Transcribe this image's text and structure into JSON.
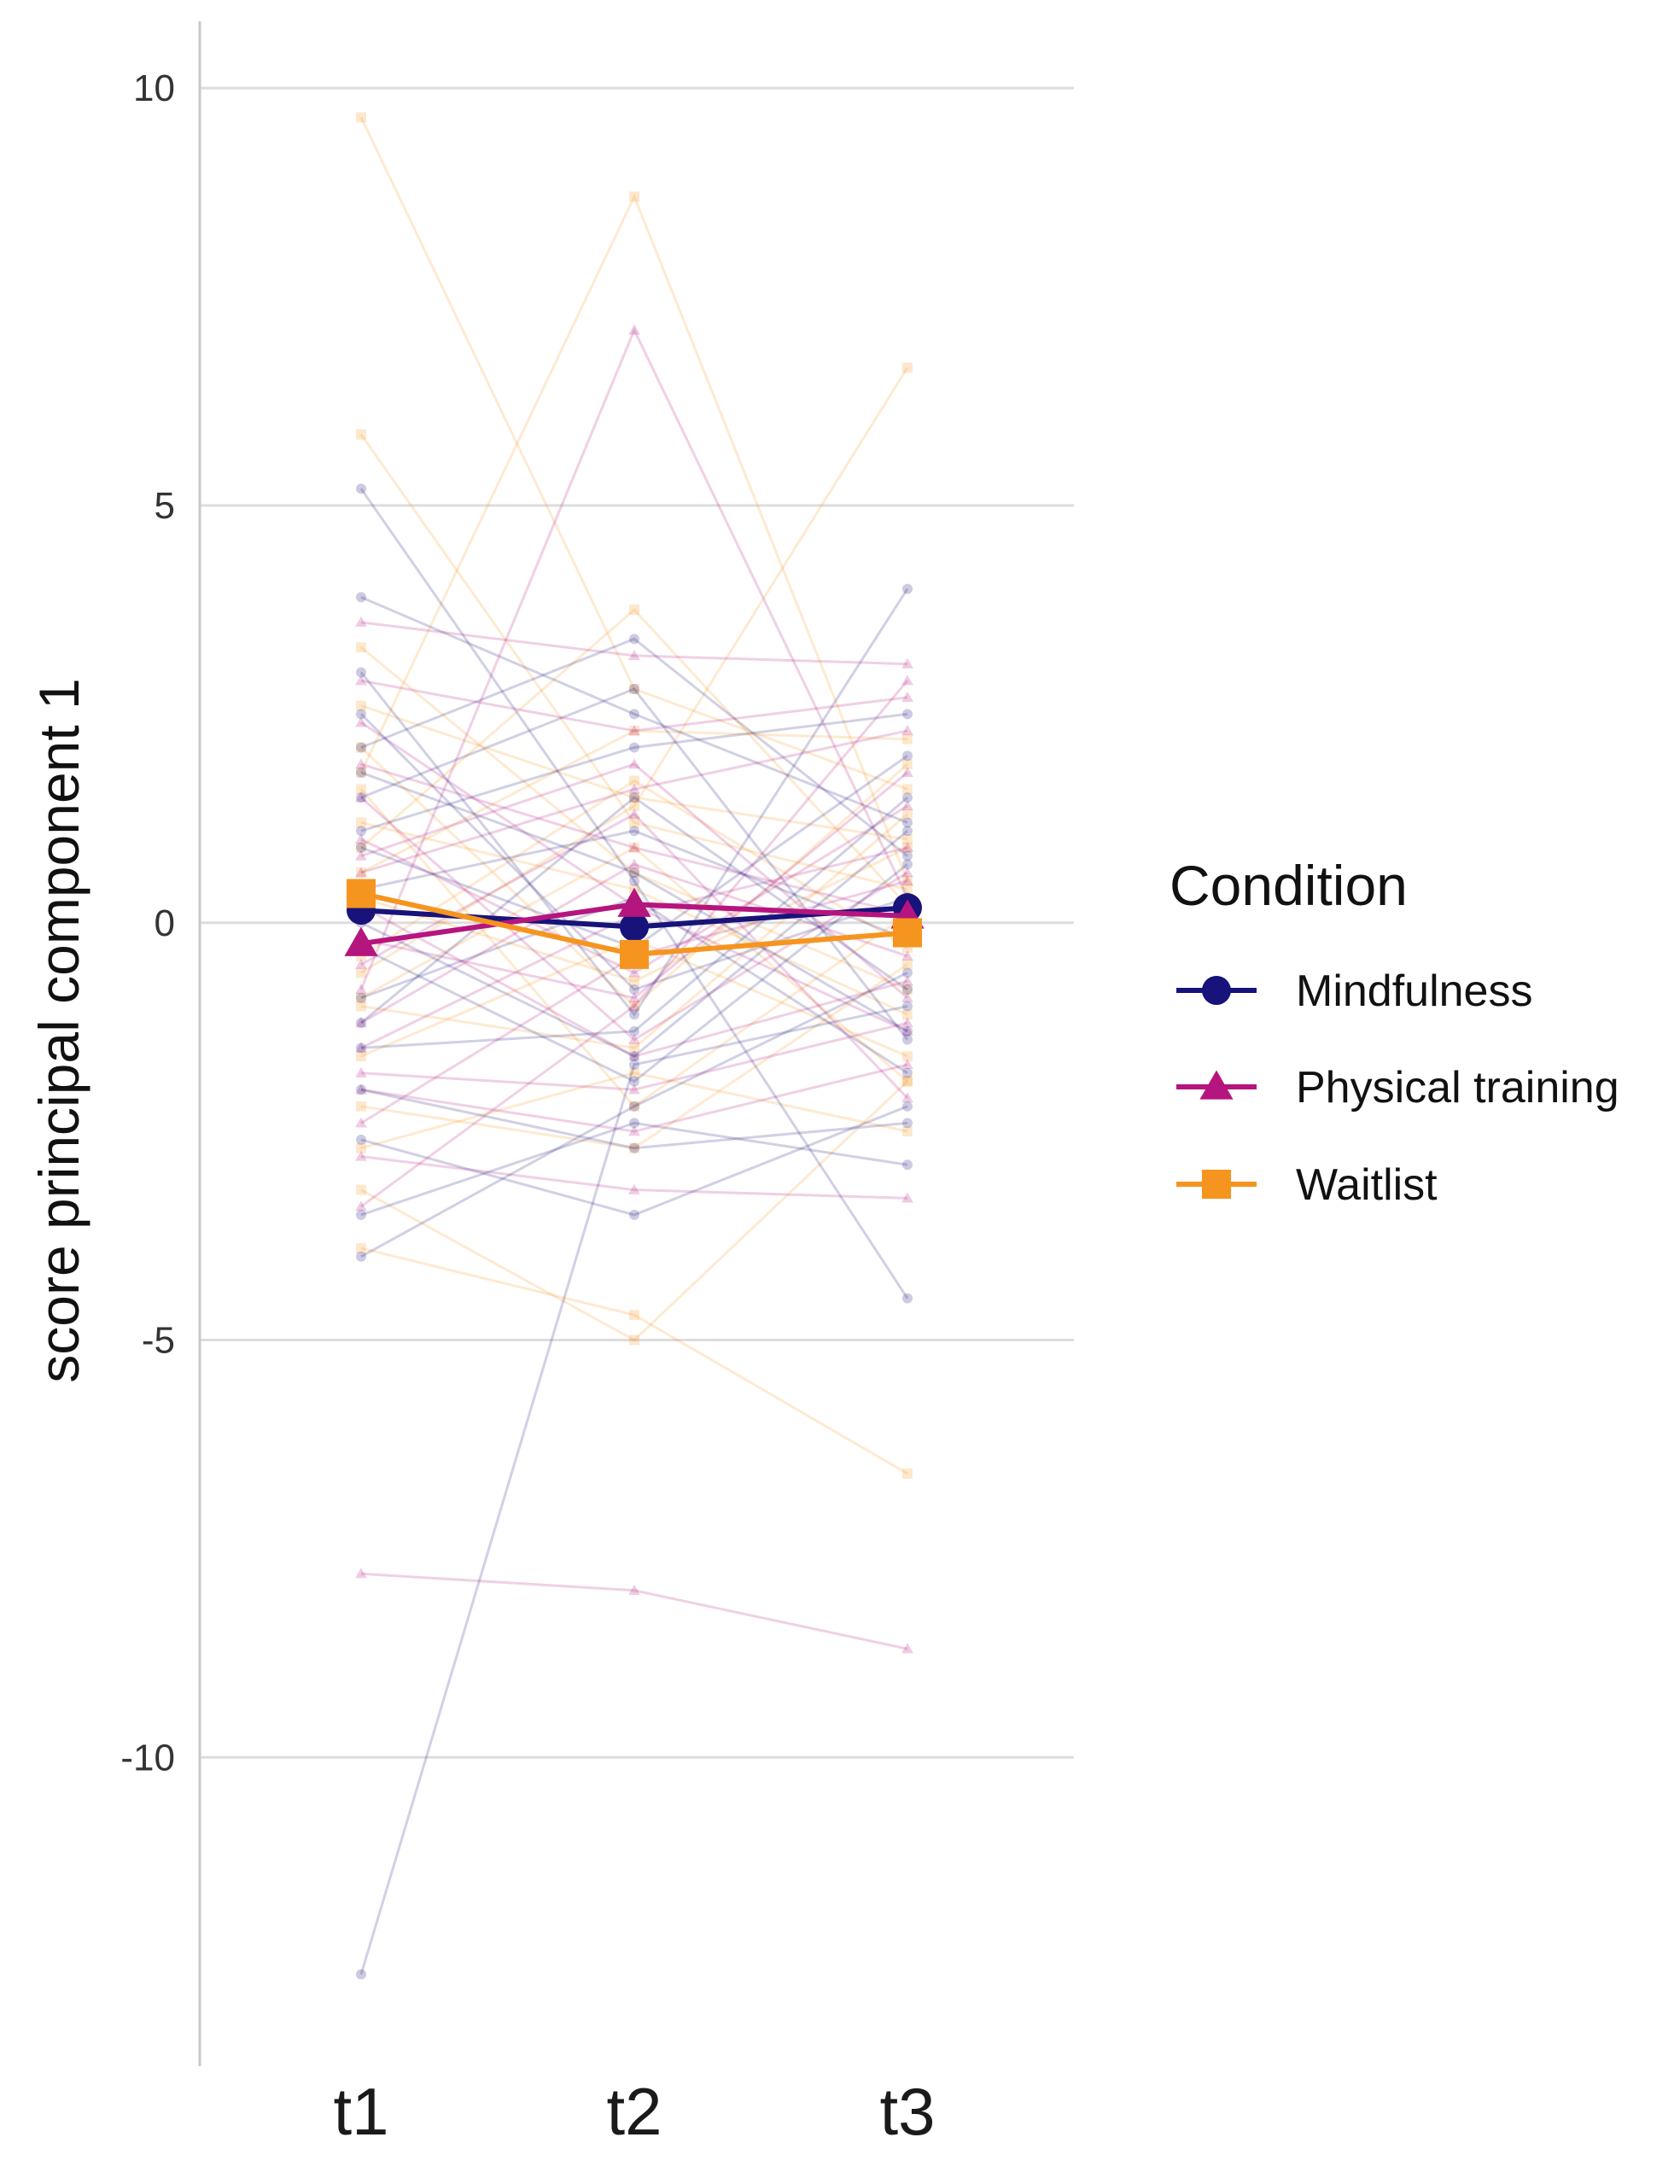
{
  "chart_data": {
    "type": "line",
    "title": "",
    "xlabel": "",
    "ylabel": "score principal component 1",
    "categories": [
      "t1",
      "t2",
      "t3"
    ],
    "ylim": [
      -13.7,
      10.8
    ],
    "yticks": [
      10,
      5,
      0,
      -5,
      -10
    ],
    "ytick_labels": [
      "10",
      "5",
      "0",
      "-5",
      "-10"
    ],
    "grid": "horizontal",
    "legend": {
      "title": "Condition",
      "placement": "right",
      "entries": [
        "Mindfulness",
        "Physical training",
        "Waitlist"
      ]
    },
    "series": [
      {
        "name": "Mindfulness",
        "marker": "circle",
        "color": "#17137a",
        "values": [
          0.15,
          -0.05,
          0.18
        ]
      },
      {
        "name": "Physical training",
        "marker": "triangle",
        "color": "#b5157f",
        "values": [
          -0.25,
          0.22,
          0.08
        ]
      },
      {
        "name": "Waitlist",
        "marker": "square",
        "color": "#f5951f",
        "values": [
          0.35,
          -0.38,
          -0.12
        ]
      }
    ],
    "individual_trajectories": [
      {
        "group": "Waitlist",
        "values": [
          9.65,
          2.8,
          1.6
        ]
      },
      {
        "group": "Waitlist",
        "values": [
          5.85,
          1.2,
          0.4
        ]
      },
      {
        "group": "Waitlist",
        "values": [
          1.8,
          8.7,
          0.5
        ]
      },
      {
        "group": "Waitlist",
        "values": [
          0.9,
          3.75,
          0.2
        ]
      },
      {
        "group": "Waitlist",
        "values": [
          -0.6,
          1.4,
          6.65
        ]
      },
      {
        "group": "Waitlist",
        "values": [
          -3.9,
          -4.7,
          -6.6
        ]
      },
      {
        "group": "Waitlist",
        "values": [
          -3.2,
          -5.0,
          -1.9
        ]
      },
      {
        "group": "Waitlist",
        "values": [
          3.3,
          0.6,
          -0.8
        ]
      },
      {
        "group": "Waitlist",
        "values": [
          2.1,
          -1.0,
          1.9
        ]
      },
      {
        "group": "Waitlist",
        "values": [
          1.2,
          0.4,
          -1.1
        ]
      },
      {
        "group": "Waitlist",
        "values": [
          0.3,
          -0.7,
          0.9
        ]
      },
      {
        "group": "Waitlist",
        "values": [
          -0.4,
          1.7,
          -0.3
        ]
      },
      {
        "group": "Waitlist",
        "values": [
          -1.0,
          -1.5,
          1.3
        ]
      },
      {
        "group": "Waitlist",
        "values": [
          -1.6,
          -0.2,
          -1.6
        ]
      },
      {
        "group": "Waitlist",
        "values": [
          -2.2,
          -2.7,
          -0.5
        ]
      },
      {
        "group": "Waitlist",
        "values": [
          -2.7,
          -1.8,
          -2.5
        ]
      },
      {
        "group": "Waitlist",
        "values": [
          0.6,
          2.3,
          2.2
        ]
      },
      {
        "group": "Waitlist",
        "values": [
          1.6,
          -2.2,
          0.1
        ]
      },
      {
        "group": "Waitlist",
        "values": [
          -0.9,
          0.9,
          -1.9
        ]
      },
      {
        "group": "Waitlist",
        "values": [
          2.6,
          1.5,
          1.0
        ]
      },
      {
        "group": "Physical training",
        "values": [
          -0.8,
          7.1,
          0.3
        ]
      },
      {
        "group": "Physical training",
        "values": [
          -7.8,
          -8.0,
          -8.7
        ]
      },
      {
        "group": "Physical training",
        "values": [
          -2.8,
          -3.2,
          -3.3
        ]
      },
      {
        "group": "Physical training",
        "values": [
          3.6,
          3.2,
          3.1
        ]
      },
      {
        "group": "Physical training",
        "values": [
          -3.4,
          -1.0,
          2.9
        ]
      },
      {
        "group": "Physical training",
        "values": [
          2.4,
          0.2,
          -1.3
        ]
      },
      {
        "group": "Physical training",
        "values": [
          1.5,
          -1.4,
          0.6
        ]
      },
      {
        "group": "Physical training",
        "values": [
          0.8,
          1.9,
          -0.9
        ]
      },
      {
        "group": "Physical training",
        "values": [
          -0.2,
          -0.9,
          1.8
        ]
      },
      {
        "group": "Physical training",
        "values": [
          -1.2,
          0.7,
          -0.4
        ]
      },
      {
        "group": "Physical training",
        "values": [
          -1.8,
          -2.0,
          -1.2
        ]
      },
      {
        "group": "Physical training",
        "values": [
          -2.4,
          -0.4,
          0.5
        ]
      },
      {
        "group": "Physical training",
        "values": [
          2.9,
          2.3,
          2.7
        ]
      },
      {
        "group": "Physical training",
        "values": [
          1.0,
          -0.6,
          1.4
        ]
      },
      {
        "group": "Physical training",
        "values": [
          -0.5,
          1.3,
          -2.1
        ]
      },
      {
        "group": "Physical training",
        "values": [
          0.2,
          -1.6,
          -0.7
        ]
      },
      {
        "group": "Physical training",
        "values": [
          -1.5,
          0.1,
          0.9
        ]
      },
      {
        "group": "Physical training",
        "values": [
          1.9,
          0.9,
          0.1
        ]
      },
      {
        "group": "Physical training",
        "values": [
          -2.0,
          -2.5,
          -1.7
        ]
      },
      {
        "group": "Physical training",
        "values": [
          0.6,
          1.6,
          2.3
        ]
      },
      {
        "group": "Mindfulness",
        "values": [
          5.2,
          0.5,
          -4.5
        ]
      },
      {
        "group": "Mindfulness",
        "values": [
          -12.6,
          -1.7,
          -1.0
        ]
      },
      {
        "group": "Mindfulness",
        "values": [
          -4.0,
          -2.2,
          -0.6
        ]
      },
      {
        "group": "Mindfulness",
        "values": [
          -3.5,
          -2.4,
          -2.9
        ]
      },
      {
        "group": "Mindfulness",
        "values": [
          -2.6,
          -3.5,
          -2.2
        ]
      },
      {
        "group": "Mindfulness",
        "values": [
          3.9,
          2.5,
          1.2
        ]
      },
      {
        "group": "Mindfulness",
        "values": [
          3.0,
          -1.1,
          4.0
        ]
      },
      {
        "group": "Mindfulness",
        "values": [
          2.1,
          3.4,
          0.8
        ]
      },
      {
        "group": "Mindfulness",
        "values": [
          1.5,
          2.8,
          -1.4
        ]
      },
      {
        "group": "Mindfulness",
        "values": [
          0.9,
          -0.3,
          2.0
        ]
      },
      {
        "group": "Mindfulness",
        "values": [
          0.4,
          1.1,
          -0.2
        ]
      },
      {
        "group": "Mindfulness",
        "values": [
          -0.3,
          -1.9,
          0.7
        ]
      },
      {
        "group": "Mindfulness",
        "values": [
          -0.9,
          0.3,
          -1.8
        ]
      },
      {
        "group": "Mindfulness",
        "values": [
          -1.5,
          -1.3,
          1.5
        ]
      },
      {
        "group": "Mindfulness",
        "values": [
          -2.0,
          -2.7,
          -2.4
        ]
      },
      {
        "group": "Mindfulness",
        "values": [
          1.1,
          2.1,
          2.5
        ]
      },
      {
        "group": "Mindfulness",
        "values": [
          2.5,
          -0.8,
          0.3
        ]
      },
      {
        "group": "Mindfulness",
        "values": [
          -1.2,
          1.5,
          -0.8
        ]
      },
      {
        "group": "Mindfulness",
        "values": [
          0.0,
          -1.6,
          1.1
        ]
      },
      {
        "group": "Mindfulness",
        "values": [
          1.8,
          0.6,
          -1.3
        ]
      }
    ]
  }
}
